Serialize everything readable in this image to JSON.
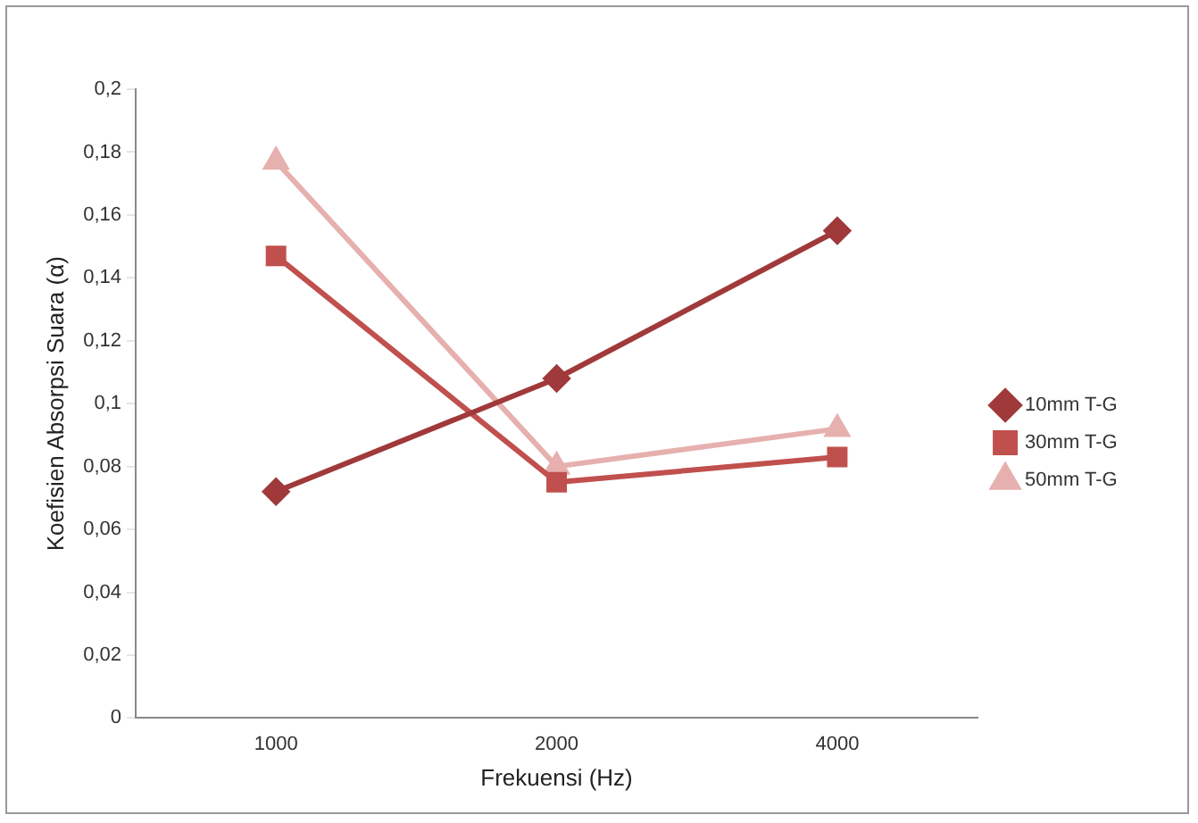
{
  "chart_data": {
    "type": "line",
    "xlabel": "Frekuensi (Hz)",
    "ylabel": "Koefisien Absorpsi Suara (α)",
    "categories": [
      "1000",
      "2000",
      "4000"
    ],
    "series": [
      {
        "name": "10mm T-G",
        "color": "#a0393a",
        "marker": "diamond",
        "values": [
          0.072,
          0.108,
          0.155
        ]
      },
      {
        "name": "30mm T-G",
        "color": "#c0504d",
        "marker": "square",
        "values": [
          0.147,
          0.075,
          0.083
        ]
      },
      {
        "name": "50mm T-G",
        "color": "#e6b0ae",
        "marker": "triangle",
        "values": [
          0.177,
          0.08,
          0.092
        ]
      }
    ],
    "ylim": [
      0,
      0.2
    ],
    "yticks": [
      {
        "value": 0,
        "label": "0"
      },
      {
        "value": 0.02,
        "label": "0,02"
      },
      {
        "value": 0.04,
        "label": "0,04"
      },
      {
        "value": 0.06,
        "label": "0,06"
      },
      {
        "value": 0.08,
        "label": "0,08"
      },
      {
        "value": 0.1,
        "label": "0,1"
      },
      {
        "value": 0.12,
        "label": "0,12"
      },
      {
        "value": 0.14,
        "label": "0,14"
      },
      {
        "value": 0.16,
        "label": "0,16"
      },
      {
        "value": 0.18,
        "label": "0,18"
      },
      {
        "value": 0.2,
        "label": "0,2"
      }
    ],
    "grid": false,
    "legend": "right",
    "line_style": "solid"
  }
}
